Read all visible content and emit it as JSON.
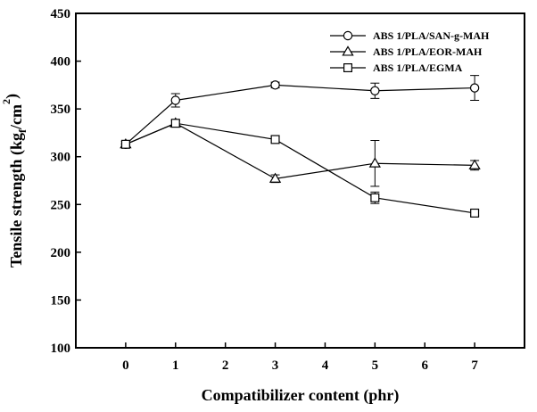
{
  "chart_data": {
    "type": "line",
    "title": "",
    "xlabel": "Compatibilizer content (phr)",
    "ylabel": "Tensile strength (kgf/cm2)",
    "ylabel_parts": {
      "main": "Tensile strength (kg",
      "sub": "f",
      "mid": "/cm",
      "sup": "2",
      "end": ")"
    },
    "x_ticks": [
      "0",
      "1",
      "2",
      "3",
      "4",
      "5",
      "6",
      "7"
    ],
    "y_ticks": [
      "100",
      "150",
      "200",
      "250",
      "300",
      "350",
      "400",
      "450"
    ],
    "xlim": [
      -1,
      8
    ],
    "ylim": [
      100,
      450
    ],
    "grid": false,
    "legend_position": "top-right",
    "series": [
      {
        "name": "ABS 1/PLA/SAN-g-MAH",
        "marker": "circle",
        "x": [
          0,
          1,
          3,
          5,
          7
        ],
        "y": [
          313,
          359,
          375,
          369,
          372
        ],
        "err": [
          3,
          7,
          3,
          8,
          13
        ]
      },
      {
        "name": "ABS 1/PLA/EOR-MAH",
        "marker": "triangle",
        "x": [
          0,
          1,
          3,
          5,
          7
        ],
        "y": [
          313,
          335,
          277,
          293,
          291
        ],
        "err": [
          3,
          3,
          4,
          24,
          5
        ]
      },
      {
        "name": "ABS 1/PLA/EGMA",
        "marker": "square",
        "x": [
          0,
          1,
          3,
          5,
          7
        ],
        "y": [
          313,
          335,
          318,
          257,
          241
        ],
        "err": [
          3,
          3,
          3,
          6,
          3
        ]
      }
    ]
  }
}
